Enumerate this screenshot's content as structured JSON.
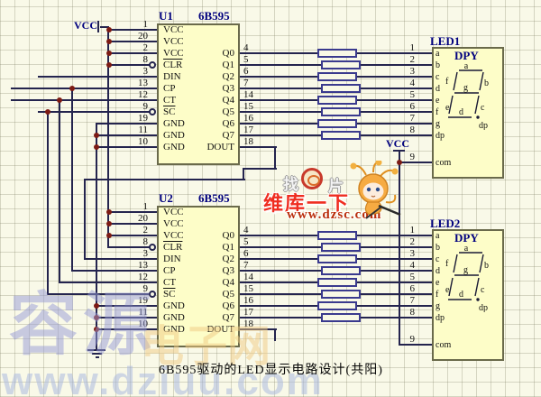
{
  "schematic": {
    "title": "6B595驱动的LED显示电路设计(共阳)"
  },
  "power": {
    "vcc": "VCC"
  },
  "colors": {
    "wire": "#24244e",
    "junction_dot": "#7d1b14",
    "chip_fill": "#fdfdc8",
    "chip_border": "#6a6a4b",
    "resistor_border": "#3a3a8e",
    "designator_text": "#00007e",
    "brand_red": "#ef2d20",
    "background": "#f9f9e8"
  },
  "components": {
    "u1": {
      "ref": "U1",
      "type": "6B595",
      "left_pins": [
        {
          "num": "1",
          "name": "VCC"
        },
        {
          "num": "20",
          "name": "VCC"
        },
        {
          "num": "2",
          "name": "VCC"
        },
        {
          "num": "8",
          "name": "CLR",
          "bar": true
        },
        {
          "num": "3",
          "name": "DIN"
        },
        {
          "num": "13",
          "name": "CP"
        },
        {
          "num": "12",
          "name": "CT"
        },
        {
          "num": "9",
          "name": "SC",
          "bar": true
        },
        {
          "num": "19",
          "name": "GND"
        },
        {
          "num": "11",
          "name": "GND"
        },
        {
          "num": "10",
          "name": "GND"
        }
      ],
      "right_pins": [
        {
          "num": "4",
          "name": "Q0"
        },
        {
          "num": "5",
          "name": "Q1"
        },
        {
          "num": "6",
          "name": "Q2"
        },
        {
          "num": "7",
          "name": "Q3"
        },
        {
          "num": "14",
          "name": "Q4"
        },
        {
          "num": "15",
          "name": "Q5"
        },
        {
          "num": "16",
          "name": "Q6"
        },
        {
          "num": "17",
          "name": "Q7"
        },
        {
          "num": "18",
          "name": "DOUT"
        }
      ]
    },
    "u2": {
      "ref": "U2",
      "type": "6B595",
      "left_pins": [
        {
          "num": "1",
          "name": "VCC"
        },
        {
          "num": "20",
          "name": "VCC"
        },
        {
          "num": "2",
          "name": "VCC"
        },
        {
          "num": "8",
          "name": "CLR",
          "bar": true
        },
        {
          "num": "3",
          "name": "DIN"
        },
        {
          "num": "13",
          "name": "CP"
        },
        {
          "num": "12",
          "name": "CT"
        },
        {
          "num": "9",
          "name": "SC",
          "bar": true
        },
        {
          "num": "19",
          "name": "GND"
        },
        {
          "num": "11",
          "name": "GND"
        },
        {
          "num": "10",
          "name": "GND"
        }
      ],
      "right_pins": [
        {
          "num": "4",
          "name": "Q0"
        },
        {
          "num": "5",
          "name": "Q1"
        },
        {
          "num": "6",
          "name": "Q2"
        },
        {
          "num": "7",
          "name": "Q3"
        },
        {
          "num": "14",
          "name": "Q4"
        },
        {
          "num": "15",
          "name": "Q5"
        },
        {
          "num": "16",
          "name": "Q6"
        },
        {
          "num": "17",
          "name": "Q7"
        },
        {
          "num": "18",
          "name": "DOUT"
        }
      ]
    },
    "led1": {
      "ref": "LED1",
      "type": "DPY",
      "pins": [
        {
          "num": "1",
          "name": "a"
        },
        {
          "num": "2",
          "name": "b"
        },
        {
          "num": "3",
          "name": "c"
        },
        {
          "num": "4",
          "name": "d"
        },
        {
          "num": "5",
          "name": "e"
        },
        {
          "num": "6",
          "name": "f"
        },
        {
          "num": "7",
          "name": "g"
        },
        {
          "num": "8",
          "name": "dp"
        },
        {
          "num": "9",
          "name": "com"
        }
      ],
      "seg": {
        "a": "a",
        "b": "b",
        "c": "c",
        "d": "d",
        "e": "e",
        "f": "f",
        "g": "g",
        "dp": "dp"
      }
    },
    "led2": {
      "ref": "LED2",
      "type": "DPY",
      "pins": [
        {
          "num": "1",
          "name": "a"
        },
        {
          "num": "2",
          "name": "b"
        },
        {
          "num": "3",
          "name": "c"
        },
        {
          "num": "4",
          "name": "d"
        },
        {
          "num": "5",
          "name": "e"
        },
        {
          "num": "6",
          "name": "f"
        },
        {
          "num": "7",
          "name": "g"
        },
        {
          "num": "8",
          "name": "dp"
        },
        {
          "num": "9",
          "name": "com"
        }
      ],
      "seg": {
        "a": "a",
        "b": "b",
        "c": "c",
        "d": "d",
        "e": "e",
        "f": "f",
        "g": "g",
        "dp": "dp"
      }
    }
  },
  "watermarks": {
    "center": {
      "tag_left": "找",
      "tag_right": "片",
      "brand": "维库一下",
      "url": "www.dzsc.com"
    },
    "corner": {
      "name": "容源",
      "name2": "电子网",
      "url": "www.dziuu.com"
    }
  }
}
